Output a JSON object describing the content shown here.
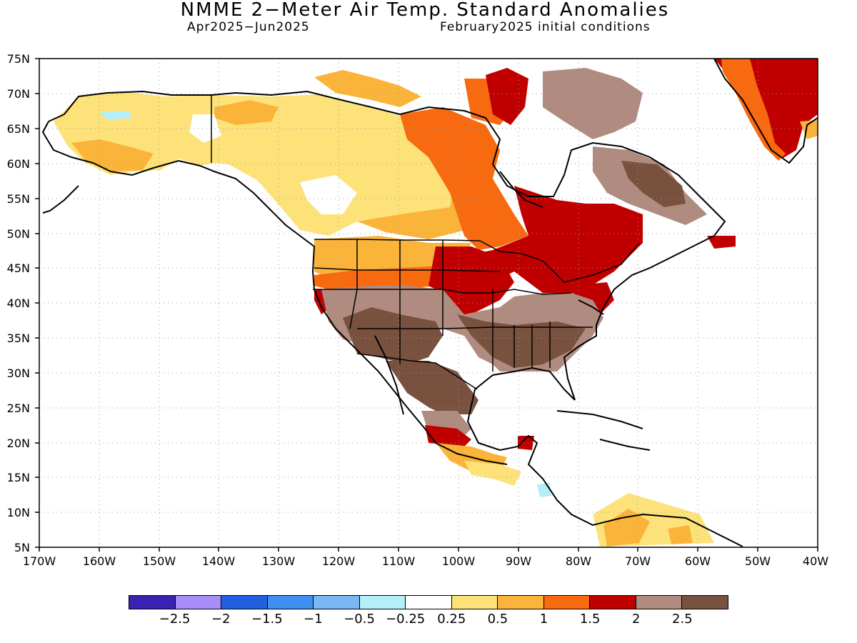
{
  "title": "NMME 2−Meter Air Temp. Standard Anomalies",
  "period": "Apr2025−Jun2025",
  "initial_conditions": "February2025 initial conditions",
  "lat_labels": [
    "75N",
    "70N",
    "65N",
    "60N",
    "55N",
    "50N",
    "45N",
    "40N",
    "35N",
    "30N",
    "25N",
    "20N",
    "15N",
    "10N",
    "5N"
  ],
  "lon_labels": [
    "170W",
    "160W",
    "150W",
    "140W",
    "130W",
    "120W",
    "110W",
    "100W",
    "90W",
    "80W",
    "70W",
    "60W",
    "50W",
    "40W"
  ],
  "colorbar": {
    "colors": [
      "#3a22b3",
      "#a78df7",
      "#2260e0",
      "#3f8ef2",
      "#7ab7f5",
      "#b4eef8",
      "#ffffff",
      "#fde279",
      "#fbb43a",
      "#f76a10",
      "#c00000",
      "#b08b80",
      "#79513f"
    ],
    "labels": [
      "−2.5",
      "−2",
      "−1.5",
      "−1",
      "−0.5",
      "−0.25",
      "0.25",
      "0.5",
      "1",
      "1.5",
      "2",
      "2.5"
    ]
  }
}
